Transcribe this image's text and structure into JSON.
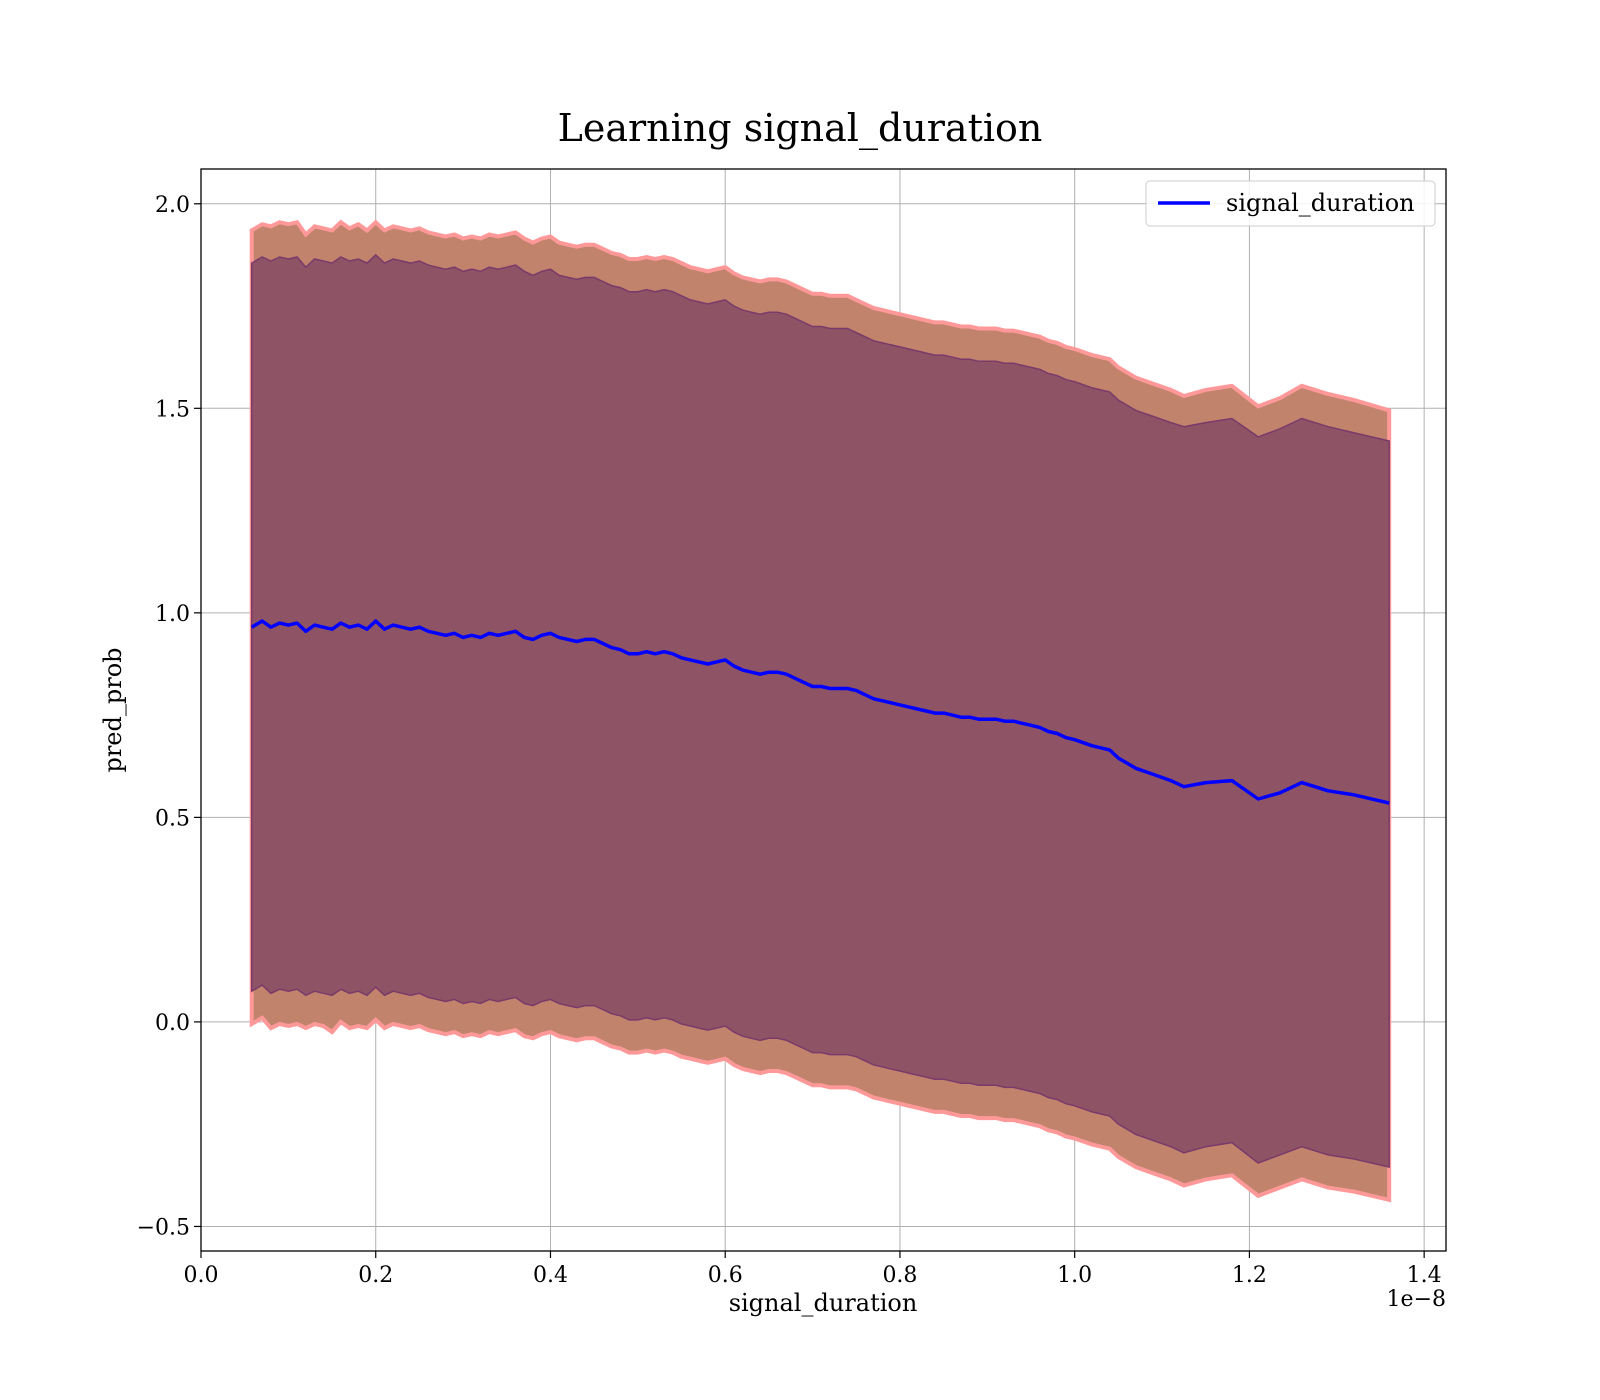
{
  "chart_data": {
    "type": "line",
    "title": "Learning signal_duration",
    "xlabel": "signal_duration",
    "ylabel": "pred_prob",
    "x_offset_text": "1e−8",
    "xlim": [
      0.0,
      1.425
    ],
    "ylim": [
      -0.56,
      2.085
    ],
    "grid": true,
    "legend_position": "top-right",
    "x_ticks": [
      0.0,
      0.2,
      0.4,
      0.6,
      0.8,
      1.0,
      1.2,
      1.4
    ],
    "x_tick_labels": [
      "0.0",
      "0.2",
      "0.4",
      "0.6",
      "0.8",
      "1.0",
      "1.2",
      "1.4"
    ],
    "y_ticks": [
      -0.5,
      0.0,
      0.5,
      1.0,
      1.5,
      2.0
    ],
    "y_tick_labels": [
      "−0.5",
      "0.0",
      "0.5",
      "1.0",
      "1.5",
      "2.0"
    ],
    "x": [
      0.058,
      0.07,
      0.08,
      0.09,
      0.1,
      0.11,
      0.12,
      0.13,
      0.14,
      0.15,
      0.16,
      0.17,
      0.18,
      0.19,
      0.2,
      0.21,
      0.22,
      0.23,
      0.24,
      0.25,
      0.26,
      0.27,
      0.28,
      0.29,
      0.3,
      0.31,
      0.32,
      0.33,
      0.34,
      0.35,
      0.36,
      0.37,
      0.38,
      0.39,
      0.4,
      0.41,
      0.42,
      0.43,
      0.44,
      0.45,
      0.46,
      0.47,
      0.48,
      0.49,
      0.5,
      0.51,
      0.52,
      0.53,
      0.54,
      0.55,
      0.56,
      0.57,
      0.58,
      0.59,
      0.6,
      0.61,
      0.62,
      0.63,
      0.64,
      0.65,
      0.66,
      0.67,
      0.68,
      0.69,
      0.7,
      0.71,
      0.72,
      0.73,
      0.74,
      0.75,
      0.76,
      0.77,
      0.78,
      0.79,
      0.8,
      0.81,
      0.82,
      0.83,
      0.84,
      0.85,
      0.86,
      0.87,
      0.88,
      0.89,
      0.9,
      0.91,
      0.92,
      0.93,
      0.94,
      0.95,
      0.96,
      0.97,
      0.98,
      0.99,
      1.0,
      1.02,
      1.04,
      1.05,
      1.07,
      1.09,
      1.11,
      1.125,
      1.15,
      1.18,
      1.21,
      1.235,
      1.26,
      1.29,
      1.32,
      1.36
    ],
    "series": [
      {
        "name": "signal_duration",
        "color": "#0000ff",
        "values": [
          0.965,
          0.98,
          0.965,
          0.975,
          0.97,
          0.975,
          0.955,
          0.97,
          0.965,
          0.96,
          0.975,
          0.965,
          0.97,
          0.96,
          0.98,
          0.96,
          0.97,
          0.965,
          0.96,
          0.965,
          0.955,
          0.95,
          0.945,
          0.95,
          0.94,
          0.945,
          0.94,
          0.95,
          0.945,
          0.95,
          0.955,
          0.94,
          0.935,
          0.945,
          0.95,
          0.94,
          0.935,
          0.93,
          0.935,
          0.935,
          0.925,
          0.915,
          0.91,
          0.9,
          0.9,
          0.905,
          0.9,
          0.905,
          0.9,
          0.89,
          0.885,
          0.88,
          0.875,
          0.88,
          0.885,
          0.87,
          0.86,
          0.855,
          0.85,
          0.855,
          0.855,
          0.85,
          0.84,
          0.83,
          0.82,
          0.82,
          0.815,
          0.815,
          0.815,
          0.81,
          0.8,
          0.79,
          0.785,
          0.78,
          0.775,
          0.77,
          0.765,
          0.76,
          0.755,
          0.755,
          0.75,
          0.745,
          0.745,
          0.74,
          0.74,
          0.74,
          0.735,
          0.735,
          0.73,
          0.725,
          0.72,
          0.71,
          0.705,
          0.695,
          0.69,
          0.675,
          0.665,
          0.645,
          0.62,
          0.605,
          0.59,
          0.575,
          0.585,
          0.59,
          0.545,
          0.56,
          0.585,
          0.565,
          0.555,
          0.535
        ]
      }
    ],
    "bands": [
      {
        "fill": "#c1836b",
        "edge": "#ff9999",
        "upper": [
          1.935,
          1.95,
          1.945,
          1.955,
          1.95,
          1.955,
          1.925,
          1.945,
          1.94,
          1.935,
          1.955,
          1.94,
          1.95,
          1.935,
          1.955,
          1.935,
          1.945,
          1.94,
          1.935,
          1.94,
          1.93,
          1.925,
          1.92,
          1.925,
          1.915,
          1.92,
          1.915,
          1.925,
          1.92,
          1.925,
          1.93,
          1.915,
          1.905,
          1.915,
          1.92,
          1.905,
          1.9,
          1.895,
          1.9,
          1.9,
          1.89,
          1.88,
          1.875,
          1.865,
          1.865,
          1.87,
          1.865,
          1.87,
          1.865,
          1.855,
          1.845,
          1.84,
          1.835,
          1.84,
          1.845,
          1.83,
          1.82,
          1.815,
          1.81,
          1.815,
          1.815,
          1.81,
          1.8,
          1.79,
          1.78,
          1.78,
          1.775,
          1.775,
          1.775,
          1.765,
          1.755,
          1.745,
          1.74,
          1.735,
          1.73,
          1.725,
          1.72,
          1.715,
          1.71,
          1.71,
          1.705,
          1.7,
          1.7,
          1.695,
          1.695,
          1.695,
          1.69,
          1.69,
          1.685,
          1.68,
          1.675,
          1.665,
          1.66,
          1.65,
          1.645,
          1.63,
          1.62,
          1.6,
          1.575,
          1.56,
          1.545,
          1.53,
          1.545,
          1.555,
          1.505,
          1.525,
          1.555,
          1.535,
          1.52,
          1.495
        ],
        "lower": [
          -0.005,
          0.01,
          -0.015,
          -0.005,
          -0.01,
          -0.005,
          -0.015,
          -0.005,
          -0.01,
          -0.025,
          0.0,
          -0.015,
          -0.01,
          -0.015,
          0.005,
          -0.015,
          -0.005,
          -0.01,
          -0.015,
          -0.01,
          -0.02,
          -0.025,
          -0.03,
          -0.025,
          -0.035,
          -0.03,
          -0.035,
          -0.025,
          -0.03,
          -0.025,
          -0.02,
          -0.035,
          -0.04,
          -0.03,
          -0.025,
          -0.035,
          -0.04,
          -0.045,
          -0.04,
          -0.04,
          -0.05,
          -0.06,
          -0.065,
          -0.075,
          -0.075,
          -0.07,
          -0.075,
          -0.07,
          -0.075,
          -0.085,
          -0.09,
          -0.095,
          -0.1,
          -0.095,
          -0.09,
          -0.105,
          -0.115,
          -0.12,
          -0.125,
          -0.12,
          -0.12,
          -0.125,
          -0.135,
          -0.145,
          -0.155,
          -0.155,
          -0.16,
          -0.16,
          -0.16,
          -0.165,
          -0.175,
          -0.185,
          -0.19,
          -0.195,
          -0.2,
          -0.205,
          -0.21,
          -0.215,
          -0.22,
          -0.22,
          -0.225,
          -0.23,
          -0.23,
          -0.235,
          -0.235,
          -0.235,
          -0.24,
          -0.24,
          -0.245,
          -0.25,
          -0.255,
          -0.265,
          -0.27,
          -0.28,
          -0.285,
          -0.3,
          -0.31,
          -0.33,
          -0.355,
          -0.37,
          -0.385,
          -0.4,
          -0.385,
          -0.375,
          -0.425,
          -0.405,
          -0.385,
          -0.405,
          -0.415,
          -0.435
        ]
      },
      {
        "fill": "#8f5366",
        "edge": "#7a3a6a",
        "upper": [
          1.855,
          1.87,
          1.86,
          1.87,
          1.865,
          1.87,
          1.845,
          1.865,
          1.86,
          1.855,
          1.87,
          1.86,
          1.865,
          1.855,
          1.875,
          1.855,
          1.865,
          1.86,
          1.855,
          1.86,
          1.85,
          1.845,
          1.84,
          1.845,
          1.835,
          1.84,
          1.835,
          1.845,
          1.84,
          1.845,
          1.85,
          1.835,
          1.825,
          1.835,
          1.84,
          1.825,
          1.82,
          1.815,
          1.82,
          1.82,
          1.81,
          1.8,
          1.795,
          1.785,
          1.785,
          1.79,
          1.785,
          1.79,
          1.785,
          1.775,
          1.765,
          1.76,
          1.755,
          1.76,
          1.765,
          1.75,
          1.74,
          1.735,
          1.73,
          1.735,
          1.735,
          1.73,
          1.72,
          1.71,
          1.7,
          1.7,
          1.695,
          1.695,
          1.695,
          1.685,
          1.675,
          1.665,
          1.66,
          1.655,
          1.65,
          1.645,
          1.64,
          1.635,
          1.63,
          1.63,
          1.625,
          1.62,
          1.62,
          1.615,
          1.615,
          1.615,
          1.61,
          1.61,
          1.605,
          1.6,
          1.595,
          1.585,
          1.58,
          1.57,
          1.565,
          1.55,
          1.54,
          1.52,
          1.495,
          1.48,
          1.465,
          1.455,
          1.465,
          1.475,
          1.43,
          1.45,
          1.475,
          1.455,
          1.44,
          1.42
        ],
        "lower": [
          0.075,
          0.09,
          0.07,
          0.08,
          0.075,
          0.08,
          0.065,
          0.075,
          0.07,
          0.065,
          0.08,
          0.07,
          0.075,
          0.065,
          0.085,
          0.065,
          0.075,
          0.07,
          0.065,
          0.07,
          0.06,
          0.055,
          0.05,
          0.055,
          0.045,
          0.05,
          0.045,
          0.055,
          0.05,
          0.055,
          0.06,
          0.045,
          0.04,
          0.05,
          0.055,
          0.045,
          0.04,
          0.035,
          0.04,
          0.04,
          0.03,
          0.02,
          0.015,
          0.005,
          0.005,
          0.01,
          0.005,
          0.01,
          0.005,
          -0.005,
          -0.01,
          -0.015,
          -0.02,
          -0.015,
          -0.01,
          -0.025,
          -0.035,
          -0.04,
          -0.045,
          -0.04,
          -0.04,
          -0.045,
          -0.055,
          -0.065,
          -0.075,
          -0.075,
          -0.08,
          -0.08,
          -0.08,
          -0.085,
          -0.095,
          -0.105,
          -0.11,
          -0.115,
          -0.12,
          -0.125,
          -0.13,
          -0.135,
          -0.14,
          -0.14,
          -0.145,
          -0.15,
          -0.15,
          -0.155,
          -0.155,
          -0.155,
          -0.16,
          -0.16,
          -0.165,
          -0.17,
          -0.175,
          -0.185,
          -0.19,
          -0.2,
          -0.205,
          -0.22,
          -0.23,
          -0.25,
          -0.275,
          -0.29,
          -0.305,
          -0.32,
          -0.305,
          -0.295,
          -0.345,
          -0.325,
          -0.305,
          -0.325,
          -0.335,
          -0.355
        ]
      }
    ]
  }
}
